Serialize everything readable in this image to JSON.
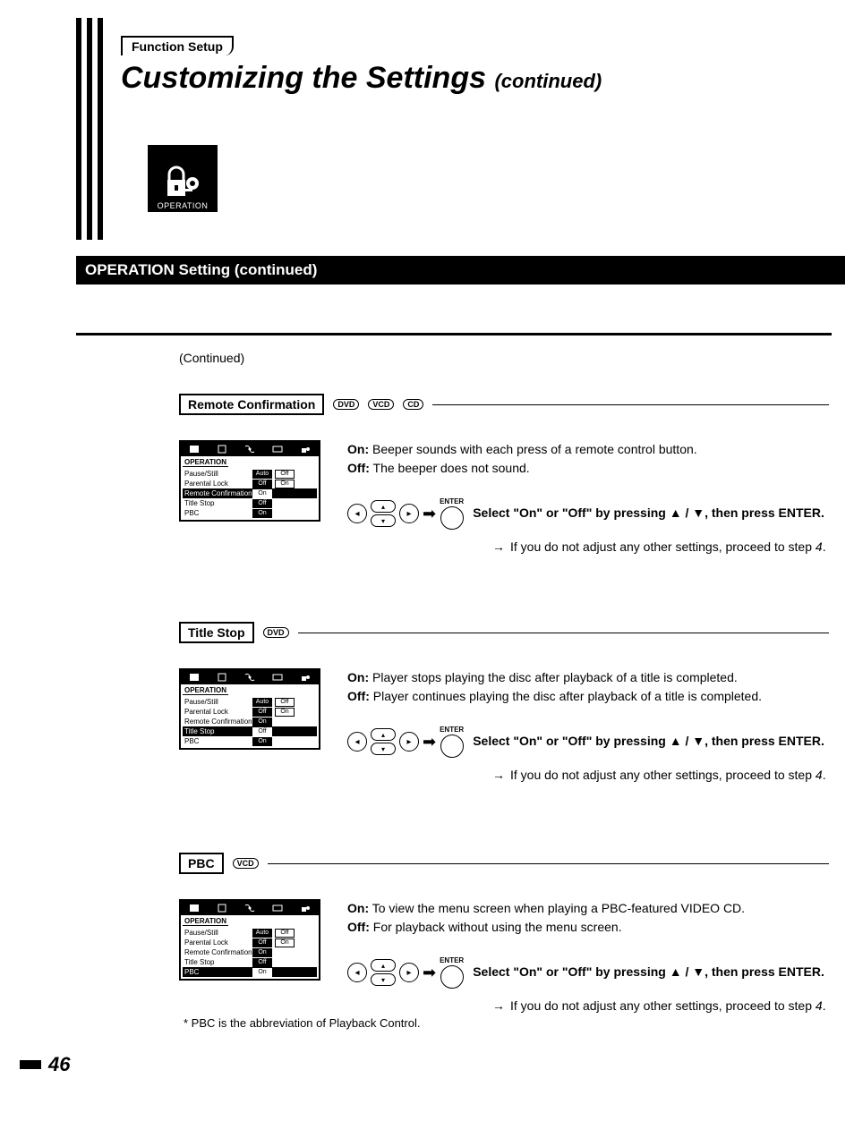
{
  "breadcrumb": "Function Setup",
  "title_main": "Customizing the Settings",
  "title_sub": "(continued)",
  "icon_label": "OPERATION",
  "section_heading": "OPERATION Setting (continued)",
  "continued_label": "(Continued)",
  "badges": {
    "dvd": "DVD",
    "vcd": "VCD",
    "cd": "CD"
  },
  "osd": {
    "heading": "OPERATION",
    "rows": [
      {
        "label": "Pause/Still",
        "v1": "Auto",
        "v2": "Off"
      },
      {
        "label": "Parental Lock",
        "v1": "Off",
        "v2": "On"
      },
      {
        "label": "Remote Confirmation",
        "v1": "On",
        "v2": ""
      },
      {
        "label": "Title Stop",
        "v1": "Off",
        "v2": ""
      },
      {
        "label": "PBC",
        "v1": "On",
        "v2": ""
      }
    ]
  },
  "enter_label": "ENTER",
  "settings": [
    {
      "name": "Remote Confirmation",
      "badges": [
        "dvd",
        "vcd",
        "cd"
      ],
      "highlight_row": 2,
      "on": "Beeper sounds with each press of a remote control button.",
      "off": "The beeper does not sound.",
      "instruction": "Select \"On\" or \"Off\" by pressing ▲ / ▼, then press ENTER.",
      "note": "If you do not adjust any other settings, proceed to step 4."
    },
    {
      "name": "Title Stop",
      "badges": [
        "dvd"
      ],
      "highlight_row": 3,
      "on": "Player stops playing the disc after playback of a title is completed.",
      "off": "Player continues playing the disc after playback of a title is completed.",
      "instruction": "Select \"On\" or \"Off\" by pressing ▲ / ▼, then press ENTER.",
      "note": "If you do not adjust any other settings, proceed to step 4."
    },
    {
      "name": "PBC",
      "badges": [
        "vcd"
      ],
      "highlight_row": 4,
      "on": "To view the menu screen when playing a PBC-featured VIDEO CD.",
      "off": "For playback without using the menu screen.",
      "instruction": "Select \"On\" or \"Off\" by pressing ▲ / ▼, then press ENTER.",
      "note": "If you do not adjust any other settings, proceed to step 4."
    }
  ],
  "footnote": "* PBC is the abbreviation of Playback Control.",
  "on_label": "On:",
  "off_label": "Off:",
  "page_number": "46"
}
